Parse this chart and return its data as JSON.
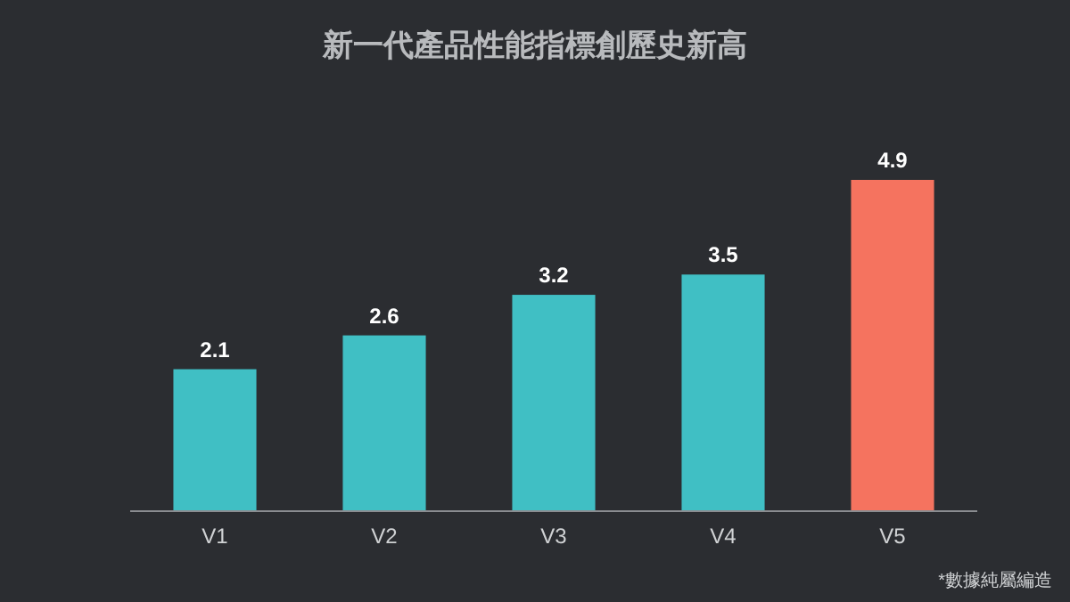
{
  "chart_data": {
    "type": "bar",
    "title": "新一代產品性能指標創歷史新高",
    "categories": [
      "V1",
      "V2",
      "V3",
      "V4",
      "V5"
    ],
    "values": [
      2.1,
      2.6,
      3.2,
      3.5,
      4.9
    ],
    "colors": [
      "#40bfc4",
      "#40bfc4",
      "#40bfc4",
      "#40bfc4",
      "#f5735f"
    ],
    "data_labels": true,
    "annotations": [
      "*數據純屬編造"
    ]
  }
}
